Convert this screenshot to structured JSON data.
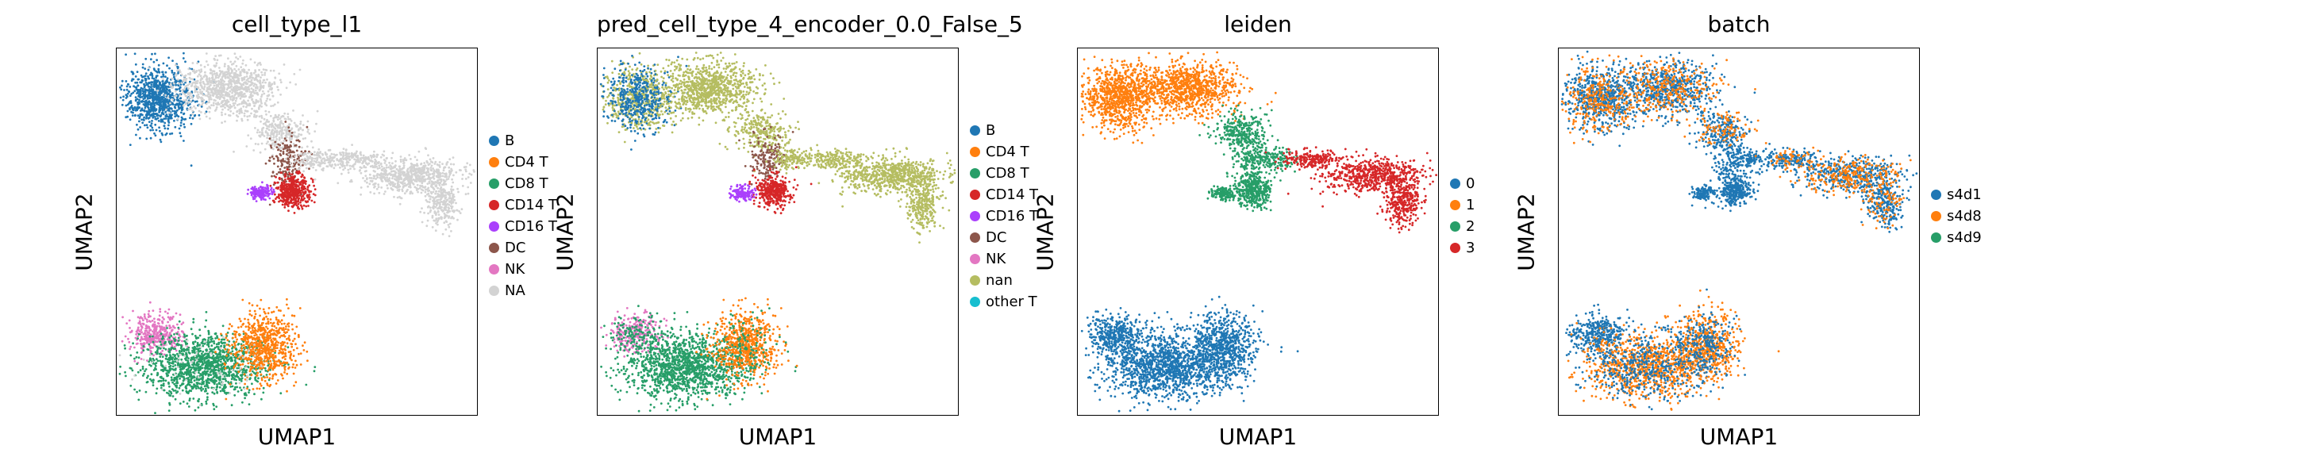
{
  "chart_data": [
    {
      "type": "scatter",
      "title": "cell_type_l1",
      "xlabel": "UMAP1",
      "ylabel": "UMAP2",
      "legend_position": "right",
      "grid": false,
      "series": [
        {
          "name": "B",
          "color": "#1f77b4"
        },
        {
          "name": "CD4 T",
          "color": "#ff7f0e"
        },
        {
          "name": "CD8 T",
          "color": "#279e68"
        },
        {
          "name": "CD14 T",
          "color": "#d62728"
        },
        {
          "name": "CD16 T",
          "color": "#aa40fc"
        },
        {
          "name": "DC",
          "color": "#8c564b"
        },
        {
          "name": "NK",
          "color": "#e377c2"
        },
        {
          "name": "NA",
          "color": "#d3d3d3"
        }
      ]
    },
    {
      "type": "scatter",
      "title": "pred_cell_type_4_encoder_0.0_False_5",
      "xlabel": "UMAP1",
      "ylabel": "UMAP2",
      "legend_position": "right",
      "grid": false,
      "series": [
        {
          "name": "B",
          "color": "#1f77b4"
        },
        {
          "name": "CD4 T",
          "color": "#ff7f0e"
        },
        {
          "name": "CD8 T",
          "color": "#279e68"
        },
        {
          "name": "CD14 T",
          "color": "#d62728"
        },
        {
          "name": "CD16 T",
          "color": "#aa40fc"
        },
        {
          "name": "DC",
          "color": "#8c564b"
        },
        {
          "name": "NK",
          "color": "#e377c2"
        },
        {
          "name": "nan",
          "color": "#b5bd61"
        },
        {
          "name": "other T",
          "color": "#17becf"
        }
      ]
    },
    {
      "type": "scatter",
      "title": "leiden",
      "xlabel": "UMAP1",
      "ylabel": "UMAP2",
      "legend_position": "right",
      "grid": false,
      "series": [
        {
          "name": "0",
          "color": "#1f77b4"
        },
        {
          "name": "1",
          "color": "#ff7f0e"
        },
        {
          "name": "2",
          "color": "#279e68"
        },
        {
          "name": "3",
          "color": "#d62728"
        }
      ]
    },
    {
      "type": "scatter",
      "title": "batch",
      "xlabel": "UMAP1",
      "ylabel": "UMAP2",
      "legend_position": "right",
      "grid": false,
      "series": [
        {
          "name": "s4d1",
          "color": "#1f77b4"
        },
        {
          "name": "s4d8",
          "color": "#ff7f0e"
        },
        {
          "name": "s4d9",
          "color": "#279e68"
        }
      ]
    }
  ]
}
